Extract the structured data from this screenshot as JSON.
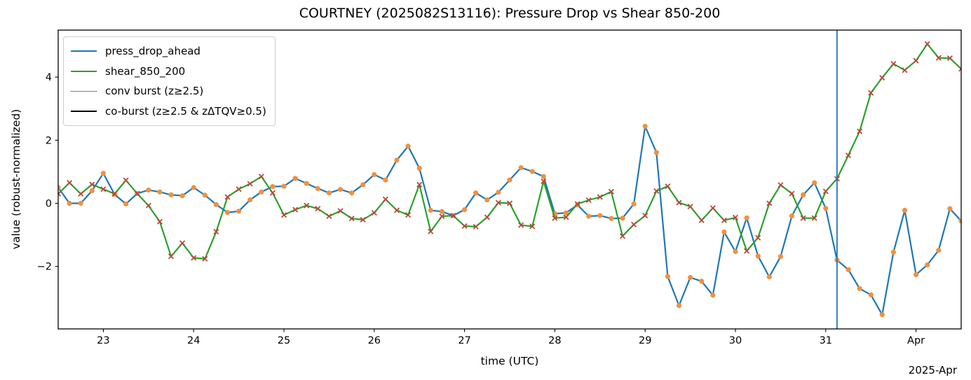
{
  "title": "COURTNEY (2025082S13116): Pressure Drop vs Shear 850-200",
  "axes": {
    "xlabel": "time (UTC)",
    "ylabel": "value (robust-normalized)",
    "offset_text": "2025-Apr",
    "x_ticks": [
      {
        "t": 23,
        "label": "23"
      },
      {
        "t": 24,
        "label": "24"
      },
      {
        "t": 25,
        "label": "25"
      },
      {
        "t": 26,
        "label": "26"
      },
      {
        "t": 27,
        "label": "27"
      },
      {
        "t": 28,
        "label": "28"
      },
      {
        "t": 29,
        "label": "29"
      },
      {
        "t": 30,
        "label": "30"
      },
      {
        "t": 31,
        "label": "31"
      },
      {
        "t": 32,
        "label": "Apr"
      }
    ],
    "y_ticks": [
      {
        "v": -2,
        "label": "−2"
      },
      {
        "v": 0,
        "label": "0"
      },
      {
        "v": 2,
        "label": "2"
      },
      {
        "v": 4,
        "label": "4"
      }
    ],
    "grid": false
  },
  "legend": {
    "position": "upper-left",
    "entries": [
      {
        "label": "press_drop_ahead",
        "line": "solid",
        "color": "#1f77b4",
        "width": 2.6
      },
      {
        "label": "shear_850_200",
        "line": "solid",
        "color": "#2ca02c",
        "width": 2.6
      },
      {
        "label": "conv burst (z≥2.5)",
        "line": "dotted",
        "color": "#000000",
        "width": 1.7
      },
      {
        "label": "co-burst (z≥2.5 & zΔTQV≥0.5)",
        "line": "solid",
        "color": "#000000",
        "width": 2
      }
    ]
  },
  "colors": {
    "press_drop_line": "#1f77b4",
    "shear_line": "#2ca02c",
    "conv_burst_marker": "#f0913f",
    "co_burst_marker": "#b8483c",
    "event_line": "#1f77b4",
    "frame": "#000000"
  },
  "chart_data": {
    "type": "line",
    "title": "COURTNEY (2025082S13116): Pressure Drop vs Shear 850-200",
    "xlabel": "time (UTC)",
    "ylabel": "value (robust-normalized)",
    "xlim": [
      22.5,
      32.5
    ],
    "ylim": [
      -3.98,
      5.49
    ],
    "x_units": "day of March 2025 (31+ = April)",
    "event_line_x": 31.125,
    "x": [
      22.5,
      22.625,
      22.75,
      22.875,
      23,
      23.125,
      23.25,
      23.375,
      23.5,
      23.625,
      23.75,
      23.875,
      24,
      24.125,
      24.25,
      24.375,
      24.5,
      24.625,
      24.75,
      24.875,
      25,
      25.125,
      25.25,
      25.375,
      25.5,
      25.625,
      25.75,
      25.875,
      26,
      26.125,
      26.25,
      26.375,
      26.5,
      26.625,
      26.75,
      26.875,
      27,
      27.125,
      27.25,
      27.375,
      27.5,
      27.625,
      27.75,
      27.875,
      28,
      28.125,
      28.25,
      28.375,
      28.5,
      28.625,
      28.75,
      28.875,
      29,
      29.125,
      29.25,
      29.375,
      29.5,
      29.625,
      29.75,
      29.875,
      30,
      30.125,
      30.25,
      30.375,
      30.5,
      30.625,
      30.75,
      30.875,
      31,
      31.125,
      31.25,
      31.375,
      31.5,
      31.625,
      31.75,
      31.875,
      32,
      32.125,
      32.25,
      32.375,
      32.5
    ],
    "series": [
      {
        "name": "press_drop_ahead",
        "color": "#1f77b4",
        "marker": "circle",
        "marker_color": "#f0913f",
        "values": [
          0.5,
          0,
          0,
          0.4,
          0.95,
          0.28,
          -0.02,
          0.31,
          0.42,
          0.36,
          0.27,
          0.24,
          0.5,
          0.26,
          -0.04,
          -0.29,
          -0.25,
          0.11,
          0.36,
          0.53,
          0.54,
          0.79,
          0.63,
          0.47,
          0.33,
          0.44,
          0.33,
          0.59,
          0.91,
          0.74,
          1.37,
          1.81,
          1.11,
          -0.22,
          -0.26,
          -0.39,
          -0.2,
          0.33,
          0.11,
          0.35,
          0.74,
          1.13,
          1.01,
          0.85,
          -0.33,
          -0.3,
          -0.05,
          -0.41,
          -0.39,
          -0.48,
          -0.47,
          -0.02,
          2.44,
          1.61,
          -2.32,
          -3.24,
          -2.35,
          -2.47,
          -2.91,
          -0.91,
          -1.53,
          -0.46,
          -1.67,
          -2.33,
          -1.69,
          -0.4,
          0.27,
          0.65,
          -0.16,
          -1.8,
          -2.1,
          -2.7,
          -2.9,
          -3.53,
          -1.55,
          -0.22,
          -2.26,
          -1.95,
          -1.49,
          -0.17,
          -0.56
        ]
      },
      {
        "name": "shear_850_200",
        "color": "#2ca02c",
        "marker": "x",
        "marker_color": "#b8483c",
        "values": [
          0.3,
          0.65,
          0.3,
          0.6,
          0.45,
          0.3,
          0.73,
          0.31,
          -0.07,
          -0.58,
          -1.68,
          -1.26,
          -1.73,
          -1.76,
          -0.9,
          0.2,
          0.45,
          0.62,
          0.85,
          0.33,
          -0.37,
          -0.2,
          -0.07,
          -0.17,
          -0.41,
          -0.24,
          -0.48,
          -0.52,
          -0.3,
          0.13,
          -0.22,
          -0.37,
          0.59,
          -0.89,
          -0.41,
          -0.39,
          -0.72,
          -0.74,
          -0.44,
          0.02,
          0,
          -0.69,
          -0.73,
          0.7,
          -0.47,
          -0.44,
          -0.02,
          0.1,
          0.2,
          0.37,
          -1.04,
          -0.67,
          -0.39,
          0.39,
          0.54,
          0.02,
          -0.1,
          -0.54,
          -0.15,
          -0.54,
          -0.45,
          -1.51,
          -1.09,
          0,
          0.58,
          0.31,
          -0.47,
          -0.47,
          0.38,
          0.78,
          1.52,
          2.28,
          3.5,
          3.98,
          4.42,
          4.22,
          4.52,
          5.05,
          4.61,
          4.6,
          4.26
        ]
      }
    ]
  }
}
